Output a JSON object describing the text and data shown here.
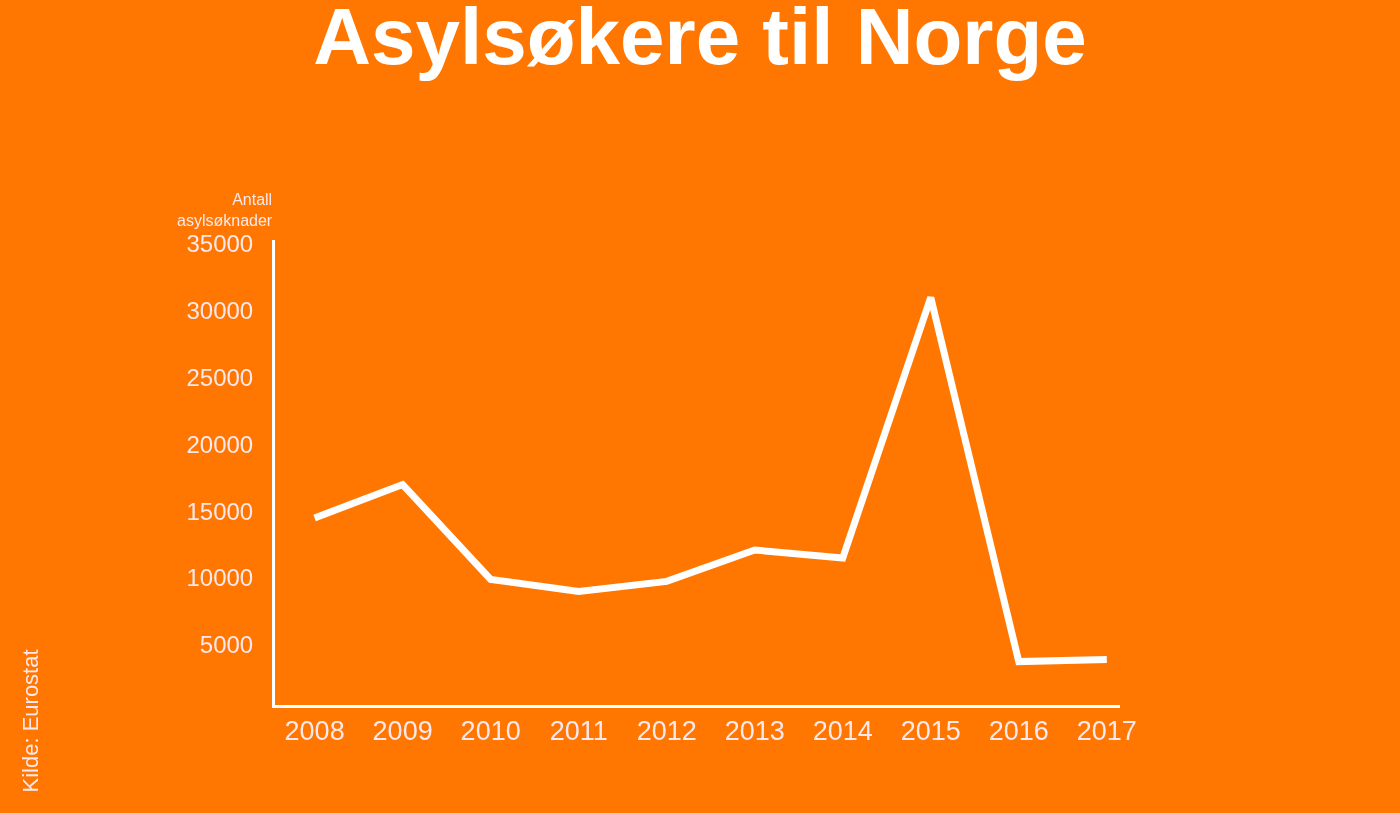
{
  "chart_data": {
    "type": "line",
    "title": "Asylsøkere til Norge",
    "ylabel": "Antall\nasylsøknader",
    "categories": [
      "2008",
      "2009",
      "2010",
      "2011",
      "2012",
      "2013",
      "2014",
      "2015",
      "2016",
      "2017"
    ],
    "values": [
      14500,
      17000,
      9900,
      9000,
      9750,
      12100,
      11500,
      31000,
      3750,
      3900
    ],
    "color": "#ffffff",
    "ylim": [
      500,
      35300
    ],
    "yticks": [
      5000,
      10000,
      15000,
      20000,
      25000,
      30000,
      35000
    ],
    "annotations": [
      "Kilde: Eurostat"
    ]
  }
}
